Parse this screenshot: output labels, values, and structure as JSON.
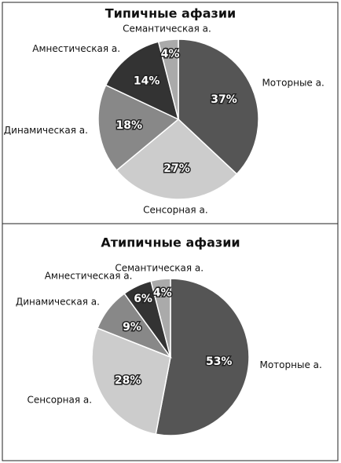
{
  "chart_data": [
    {
      "type": "pie",
      "title": "Типичные афазии",
      "categories": [
        "Моторные а.",
        "Сенсорная а.",
        "Динамическая а.",
        "Амнестическая а.",
        "Семантическая а."
      ],
      "values": [
        37,
        27,
        18,
        14,
        4
      ],
      "value_labels": [
        "37%",
        "27%",
        "18%",
        "14%",
        "4%"
      ],
      "colors": [
        "#555555",
        "#cccccc",
        "#888888",
        "#333333",
        "#aaaaaa"
      ]
    },
    {
      "type": "pie",
      "title": "Атипичные афазии",
      "categories": [
        "Моторные а.",
        "Сенсорная а.",
        "Динамическая а.",
        "Амнестическая а.",
        "Семантическая а."
      ],
      "values": [
        53,
        28,
        9,
        6,
        4
      ],
      "value_labels": [
        "53%",
        "28%",
        "9%",
        "6%",
        "4%"
      ],
      "colors": [
        "#555555",
        "#cccccc",
        "#888888",
        "#333333",
        "#aaaaaa"
      ]
    }
  ]
}
